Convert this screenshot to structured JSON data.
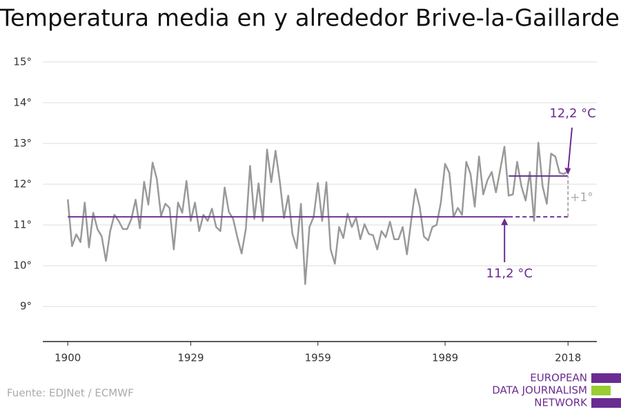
{
  "chart_data": {
    "type": "line",
    "title": "Temperatura media en y alrededor Brive-la-Gaillarde",
    "source": "Fuente: EDJNet / ECMWF",
    "logo": [
      "EUROPEAN",
      "DATA JOURNALISM",
      "NETWORK"
    ],
    "color": "#999999",
    "x": [
      1900,
      1901,
      1902,
      1903,
      1904,
      1905,
      1906,
      1907,
      1908,
      1909,
      1910,
      1911,
      1912,
      1913,
      1914,
      1915,
      1916,
      1917,
      1918,
      1919,
      1920,
      1921,
      1922,
      1923,
      1924,
      1925,
      1926,
      1927,
      1928,
      1929,
      1930,
      1931,
      1932,
      1933,
      1934,
      1935,
      1936,
      1937,
      1938,
      1939,
      1940,
      1941,
      1942,
      1943,
      1944,
      1945,
      1946,
      1947,
      1948,
      1949,
      1950,
      1951,
      1952,
      1953,
      1954,
      1955,
      1956,
      1957,
      1958,
      1959,
      1960,
      1961,
      1962,
      1963,
      1964,
      1965,
      1966,
      1967,
      1968,
      1969,
      1970,
      1971,
      1972,
      1973,
      1974,
      1975,
      1976,
      1977,
      1978,
      1979,
      1980,
      1981,
      1982,
      1983,
      1984,
      1985,
      1986,
      1987,
      1988,
      1989,
      1990,
      1991,
      1992,
      1993,
      1994,
      1995,
      1996,
      1997,
      1998,
      1999,
      2000,
      2001,
      2002,
      2003,
      2004,
      2005,
      2006,
      2007,
      2008,
      2009,
      2010,
      2011,
      2012,
      2013,
      2014,
      2015,
      2016,
      2017,
      2018
    ],
    "values": [
      11.63,
      10.48,
      10.77,
      10.58,
      11.55,
      10.45,
      11.3,
      10.9,
      10.72,
      10.12,
      10.85,
      11.25,
      11.1,
      10.9,
      10.9,
      11.15,
      11.62,
      10.92,
      12.06,
      11.5,
      12.53,
      12.13,
      11.22,
      11.52,
      11.42,
      10.4,
      11.55,
      11.3,
      12.08,
      11.1,
      11.55,
      10.85,
      11.25,
      11.1,
      11.4,
      10.95,
      10.85,
      11.92,
      11.32,
      11.15,
      10.7,
      10.3,
      10.9,
      12.45,
      11.15,
      12.02,
      11.1,
      12.85,
      12.05,
      12.82,
      12.08,
      11.17,
      11.72,
      10.78,
      10.43,
      11.52,
      9.55,
      10.95,
      11.2,
      12.03,
      11.1,
      12.05,
      10.4,
      10.05,
      10.95,
      10.68,
      11.28,
      10.95,
      11.18,
      10.65,
      11.02,
      10.78,
      10.75,
      10.4,
      10.85,
      10.7,
      11.08,
      10.65,
      10.65,
      10.95,
      10.28,
      11.1,
      11.88,
      11.45,
      10.72,
      10.62,
      10.95,
      11.0,
      11.55,
      12.5,
      12.28,
      11.2,
      11.42,
      11.25,
      12.55,
      12.25,
      11.45,
      12.68,
      11.75,
      12.1,
      12.3,
      11.8,
      12.35,
      12.92,
      11.72,
      11.75,
      12.55,
      11.95,
      11.6,
      12.3,
      11.1,
      13.02,
      11.95,
      11.52,
      12.75,
      12.68,
      12.28,
      12.25,
      12.32
    ],
    "xlim": [
      1894.1,
      2024.8
    ],
    "ylim": [
      8.14,
      15.25
    ],
    "xticks": [
      1900,
      1929,
      1959,
      1989,
      2018
    ],
    "yticks": [
      {
        "value": 9,
        "label": "9°"
      },
      {
        "value": 10,
        "label": "10°"
      },
      {
        "value": 11,
        "label": "11°"
      },
      {
        "value": 12,
        "label": "12°"
      },
      {
        "value": 13,
        "label": "13°"
      },
      {
        "value": 14,
        "label": "14°"
      },
      {
        "value": 15,
        "label": "15°"
      }
    ],
    "grid": true,
    "reference_lines": [
      {
        "value": 11.2,
        "label": "11,2 °C",
        "color": "#6b2c91",
        "solid_x": [
          1900,
          2004
        ],
        "dashed_x": [
          2004,
          2018
        ]
      },
      {
        "value": 12.2,
        "label": "12,2 °C",
        "color": "#6b2c91",
        "solid_x": [
          2004,
          2018
        ]
      }
    ],
    "difference_label": "+1°"
  }
}
